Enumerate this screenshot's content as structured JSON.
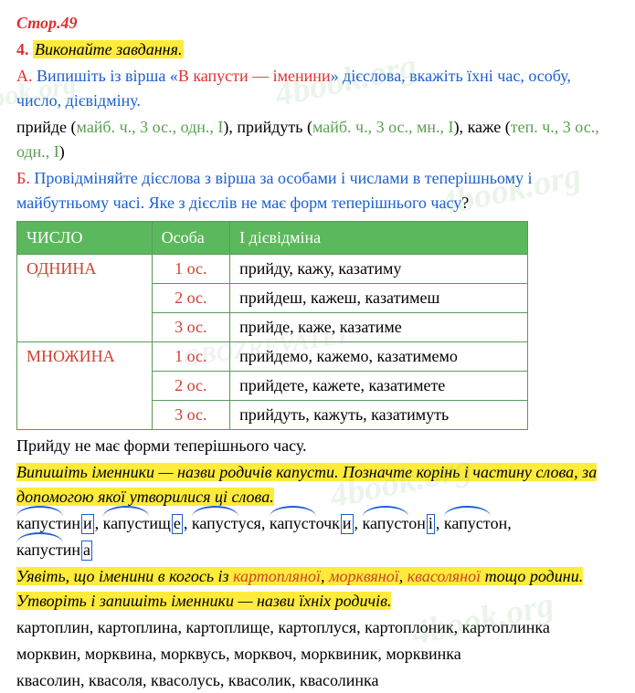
{
  "page_ref": "Стор.49",
  "task": {
    "num": "4.",
    "title": "Виконайте завдання."
  },
  "partA": {
    "label": "А.",
    "text_before": " Випишіть із вірша «",
    "poem_title": "В капусти — іменини",
    "text_after": "» дієслова, вкажіть їхні час, особу, число, дієвідміну.",
    "answers_line": "прийде (майб. ч., 3 ос., одн., І), прийдуть (майб. ч., 3 ос., мн., І), каже (теп. ч., 3 ос., одн., І)",
    "verbs": [
      {
        "word": "прийде",
        "attrs": "майб. ч., 3 ос., одн., І"
      },
      {
        "word": "прийдуть",
        "attrs": "майб. ч., 3 ос., мн., І"
      },
      {
        "word": "каже",
        "attrs": "теп. ч., 3 ос., одн., І"
      }
    ]
  },
  "partB": {
    "label": "Б.",
    "instruction": " Провідміняйте дієслова з вірша за особами і числами в теперішньому і майбутньому часі. Яке з дієслів не має форм теперішнього часу",
    "qmark": "?"
  },
  "table": {
    "headers": [
      "ЧИСЛО",
      "Особа",
      "І дієвідміна"
    ],
    "header_bg": "#5cb85c",
    "border_color": "#5a9a5a",
    "groups": [
      {
        "label": "ОДНИНА",
        "rows": [
          {
            "person": "1 ос.",
            "forms": "прийду, кажу, казатиму"
          },
          {
            "person": "2 ос.",
            "forms": "прийдеш, кажеш, казатимеш"
          },
          {
            "person": "3 ос.",
            "forms": "прийде, каже, казатиме"
          }
        ]
      },
      {
        "label": "МНОЖИНА",
        "rows": [
          {
            "person": "1 ос.",
            "forms": "прийдемо, кажемо, казатимемо"
          },
          {
            "person": "2 ос.",
            "forms": "прийдете, кажете, казатимете"
          },
          {
            "person": "3 ос.",
            "forms": "прийдуть, кажуть, казатимуть"
          }
        ]
      }
    ]
  },
  "note_after_table": "Прийду не має форми теперішнього часу.",
  "task2": {
    "highlight": "Випишіть іменники — назви родичів капусти. Позначте корінь і частину слова, за допомогою якої утворилися ці слова.",
    "words_line": "капустини, капустище, капустуся, капусточки, капустоні, капустон, капустина",
    "words": [
      {
        "root": "капуст",
        "rest": "ин",
        "suffix": "и"
      },
      {
        "root": "капуст",
        "rest": "ищ",
        "suffix": "е"
      },
      {
        "root": "капуст",
        "rest": "уся",
        "suffix": ""
      },
      {
        "root": "капуст",
        "rest": "очк",
        "suffix": "и"
      },
      {
        "root": "капуст",
        "rest": "он",
        "suffix": "і"
      },
      {
        "root": "капуст",
        "rest": "он",
        "suffix": ""
      },
      {
        "root": "капуст",
        "rest": "ин",
        "suffix": "а"
      }
    ]
  },
  "task3": {
    "hl_before": "Уявіть, що іменини в когось із ",
    "hl_words": [
      "картопляної",
      "морквяної",
      "квасоляної"
    ],
    "hl_after": " тощо родини. Утворіть і запишіть іменники — назви їхніх родичів.",
    "lines": [
      "картоплин, картоплина, картоплище, картоплуся, картоплоник, картоплинка",
      "морквин, морквина, морквусь, морквоч, морквиник, морквинка",
      "квасолин, квасоля, квасолусь, квасолик, квасолинка"
    ]
  },
  "colors": {
    "red": "#e03030",
    "blue": "#1a5fd0",
    "green": "#5aa050",
    "highlight_bg": "#ffeb3b"
  }
}
